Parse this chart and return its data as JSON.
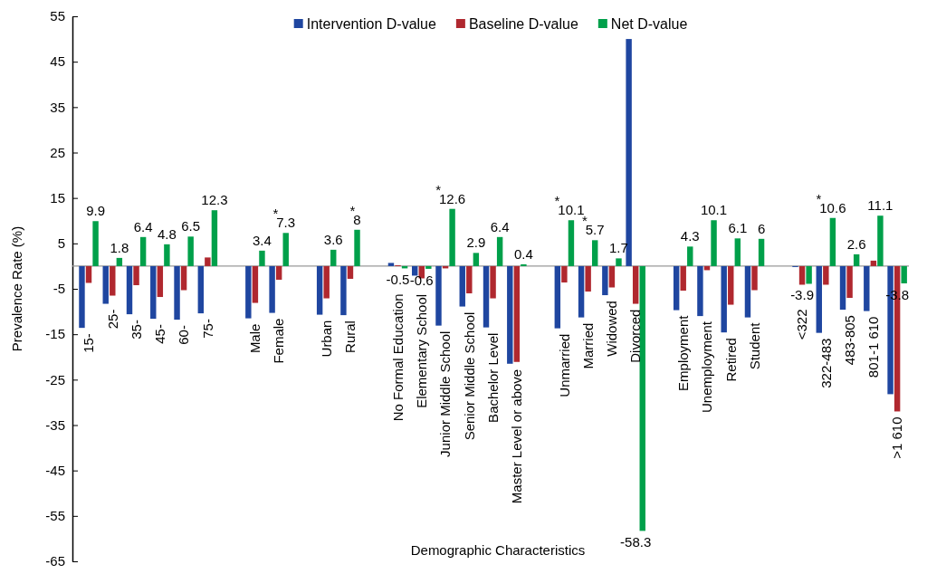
{
  "chart_data": {
    "type": "bar",
    "xlabel": "Demographic Characteristics",
    "ylabel": "Prevalence Rate (%)",
    "categories": [
      "15-",
      "25-",
      "35-",
      "45-",
      "60-",
      "75-",
      null,
      "Male",
      "Female",
      null,
      "Urban",
      "Rural",
      null,
      "No Formal Education",
      "Elementary School",
      "Junior Middle School",
      "Senior Middle School",
      "Bachelor Level",
      "Master Level or above",
      null,
      "Unmarried",
      "Married",
      "Widowed",
      "Divorced",
      null,
      "Employment",
      "Unemployment",
      "Retired",
      "Student",
      null,
      "<322",
      "322-483",
      "483-805",
      "801-1 610",
      ">1 610"
    ],
    "series": [
      {
        "name": "Intervention D-value",
        "color": "#1f46a0",
        "values": [
          -13.6,
          -8.3,
          -10.6,
          -11.6,
          -11.8,
          -10.4,
          null,
          -11.5,
          -10.3,
          null,
          -10.7,
          -10.8,
          null,
          0.7,
          -2.1,
          -13.1,
          -8.9,
          -13.5,
          -21.5,
          null,
          -13.7,
          -11.3,
          -6.4,
          50.0,
          null,
          -9.7,
          -11.0,
          -14.6,
          -11.3,
          null,
          -0.2,
          -14.7,
          -9.6,
          -9.9,
          -28.2
        ]
      },
      {
        "name": "Baseline D-value",
        "color": "#b0282f",
        "values": [
          -3.7,
          -6.5,
          -4.2,
          -6.8,
          -5.3,
          1.9,
          null,
          -8.1,
          -3.0,
          null,
          -7.1,
          -2.8,
          null,
          0.2,
          -2.7,
          -0.5,
          -6.0,
          -7.1,
          -21.1,
          null,
          -3.6,
          -5.6,
          -4.7,
          -8.3,
          null,
          -5.4,
          -0.9,
          -8.5,
          -5.3,
          null,
          -4.1,
          -4.1,
          -7.0,
          1.2,
          -32.0
        ]
      },
      {
        "name": "Net D-value",
        "color": "#00a04a",
        "values": [
          9.9,
          1.8,
          6.4,
          4.8,
          6.5,
          12.3,
          null,
          3.4,
          7.3,
          null,
          3.6,
          8,
          null,
          -0.5,
          -0.6,
          12.6,
          2.9,
          6.4,
          0.4,
          null,
          10.1,
          5.7,
          1.7,
          -58.3,
          null,
          4.3,
          10.1,
          6.1,
          6,
          null,
          -3.9,
          10.6,
          2.6,
          11.1,
          -3.8
        ],
        "value_labels": [
          "9.9",
          "1.8",
          "6.4",
          "4.8",
          "6.5",
          "12.3",
          null,
          "3.4",
          "7.3",
          null,
          "3.6",
          "8",
          null,
          "-0.5",
          "-0.6",
          "12.6",
          "2.9",
          "6.4",
          "0.4",
          null,
          "10.1",
          "5.7",
          "1.7",
          "-58.3",
          null,
          "4.3",
          "10.1",
          "6.1",
          "6",
          null,
          "-3.9",
          "10.6",
          "2.6",
          "11.1",
          "-3.8"
        ]
      }
    ],
    "ylim": [
      -65,
      55
    ],
    "yticks": [
      -65,
      -55,
      -45,
      -35,
      -25,
      -15,
      -5,
      5,
      15,
      25,
      35,
      45,
      55
    ],
    "legend": "top",
    "grid": false,
    "annotations": [
      {
        "text": "*",
        "x": "Female",
        "y": 7.3
      },
      {
        "text": "*",
        "x": "Rural",
        "y": 8
      },
      {
        "text": "*",
        "x": "Junior Middle School",
        "y": 12.6
      },
      {
        "text": "*",
        "x": "Unmarried",
        "y": 10.1
      },
      {
        "text": "*",
        "x": "Married",
        "y": 5.7
      },
      {
        "text": "*",
        "x": "322-483",
        "y": 10.6
      }
    ]
  }
}
